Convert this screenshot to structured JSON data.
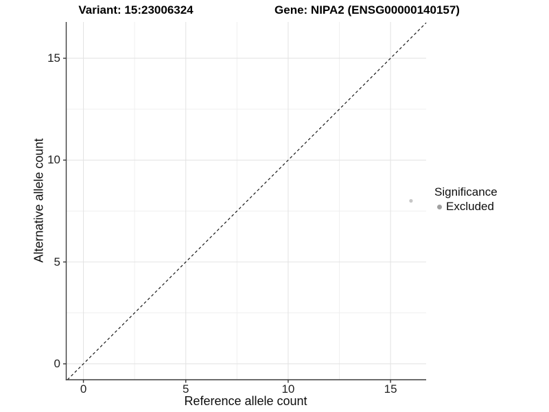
{
  "titles": {
    "variant": "Variant: 15:23006324",
    "gene": "Gene: NIPA2 (ENSG00000140157)"
  },
  "legend": {
    "title": "Significance",
    "items": [
      {
        "label": "Excluded",
        "swatch_color": "#a0a0a0"
      }
    ]
  },
  "chart_data": {
    "type": "scatter",
    "titles": [
      "Variant: 15:23006324",
      "Gene: NIPA2 (ENSG00000140157)"
    ],
    "xlabel": "Reference allele count",
    "ylabel": "Alternative allele count",
    "x_ticks": [
      0,
      5,
      10,
      15
    ],
    "y_ticks": [
      0,
      5,
      10,
      15
    ],
    "x_minor_gridlines": [
      2.5,
      7.5,
      12.5
    ],
    "y_minor_gridlines": [
      2.5,
      7.5,
      12.5
    ],
    "xlim": [
      -0.84,
      16.74
    ],
    "ylim": [
      -0.78,
      16.78
    ],
    "grid": true,
    "legend_position": "right",
    "legend_title": "Significance",
    "series": [
      {
        "name": "Excluded",
        "color": "#c7c7c7",
        "point_radius": 2.6,
        "points": [
          {
            "x": 16,
            "y": 8
          }
        ]
      }
    ],
    "reference_line": {
      "type": "identity",
      "style": "dashed",
      "color": "#161616"
    }
  },
  "colors": {
    "grid_major": "#e4e4e4",
    "grid_minor": "#efefef",
    "axis_line": "#3c3c3c",
    "tick_mark": "#333333",
    "dashed_line": "#161616",
    "point": "#c7c7c7",
    "legend_swatch": "#a0a0a0"
  }
}
